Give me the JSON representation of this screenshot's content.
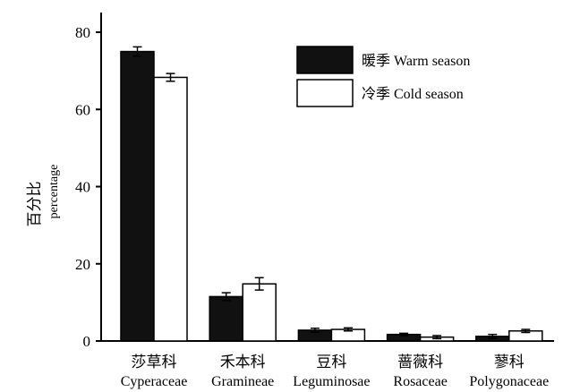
{
  "chart_data": {
    "type": "bar",
    "title": "",
    "ylabel": "百分比",
    "ylabel_en": "percentage",
    "ylim": [
      0,
      80
    ],
    "yticks": [
      0,
      20,
      40,
      60,
      80
    ],
    "grid": false,
    "legend_position": "top-right",
    "categories": [
      {
        "cn": "莎草科",
        "en": "Cyperaceae"
      },
      {
        "cn": "禾本科",
        "en": "Gramineae"
      },
      {
        "cn": "豆科",
        "en": "Leguminosae"
      },
      {
        "cn": "蔷薇科",
        "en": "Rosaceae"
      },
      {
        "cn": "蓼科",
        "en": "Polygonaceae"
      }
    ],
    "series": [
      {
        "name": "暖季 Warm season",
        "color": "#111111",
        "values": [
          75.0,
          11.5,
          2.8,
          1.7,
          1.2
        ],
        "errors": [
          1.2,
          1.0,
          0.5,
          0.3,
          0.5
        ]
      },
      {
        "name": "冷季 Cold season",
        "color": "#ffffff",
        "values": [
          68.3,
          14.8,
          3.0,
          1.0,
          2.6
        ],
        "errors": [
          1.0,
          1.6,
          0.4,
          0.4,
          0.4
        ]
      }
    ]
  }
}
